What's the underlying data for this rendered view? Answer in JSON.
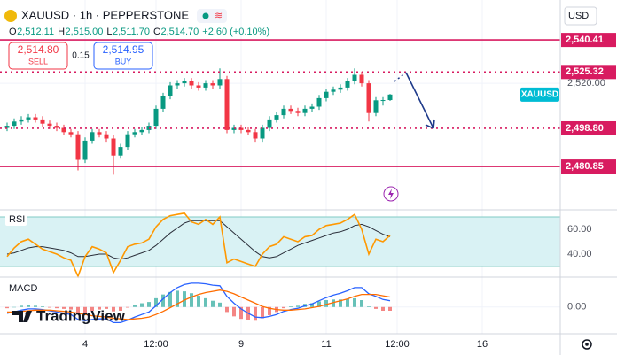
{
  "chart_data": {
    "type": "candlestick",
    "title": "XAUUSD · 1h · PEPPERSTONE",
    "currency": "USD",
    "ohlc_legend": [
      {
        "key": "O",
        "value": "2,512.11"
      },
      {
        "key": "H",
        "value": "2,515.00"
      },
      {
        "key": "L",
        "value": "2,511.70"
      },
      {
        "key": "C",
        "value": "2,514.70"
      }
    ],
    "change": "+2.60 (+0.10%)",
    "open": [
      2499,
      2500,
      2502,
      2503,
      2504,
      2503,
      2501,
      2500,
      2499,
      2497,
      2496,
      2484,
      2493,
      2497,
      2496,
      2494,
      2486,
      2490,
      2496,
      2497,
      2498,
      2500,
      2508,
      2514,
      2519,
      2520,
      2521,
      2519,
      2518,
      2520,
      2519,
      2522,
      2498,
      2499,
      2498,
      2497,
      2494,
      2499,
      2503,
      2505,
      2508,
      2507,
      2506,
      2508,
      2509,
      2513,
      2516,
      2517,
      2518,
      2521,
      2524,
      2520,
      2506,
      2512,
      2512.11
    ],
    "high": [
      2501.5,
      2503.5,
      2504.5,
      2505.5,
      2505.5,
      2504.5,
      2502.5,
      2501.5,
      2500.5,
      2498.5,
      2497.5,
      2494.5,
      2498.5,
      2498.5,
      2497.5,
      2495.5,
      2491.5,
      2497.5,
      2498.5,
      2499.5,
      2501.5,
      2509.5,
      2515.5,
      2520.5,
      2521.5,
      2522.5,
      2522.5,
      2520.5,
      2521.5,
      2521.5,
      2527,
      2523.5,
      2500.5,
      2500.5,
      2499.5,
      2498.5,
      2500.5,
      2504.5,
      2506.5,
      2509.5,
      2509.5,
      2508.5,
      2509.5,
      2510.5,
      2514.5,
      2517.5,
      2518.5,
      2519.5,
      2522.5,
      2527,
      2525.5,
      2521.5,
      2513.5,
      2513.5,
      2515.0
    ],
    "low": [
      2497.5,
      2498.5,
      2500.5,
      2501.5,
      2501.5,
      2499.5,
      2498.5,
      2497.5,
      2495.5,
      2494.5,
      2479,
      2482.5,
      2491.5,
      2494.5,
      2492.5,
      2477,
      2484.5,
      2488.5,
      2494.5,
      2495.5,
      2496.5,
      2498.5,
      2506.5,
      2512.5,
      2517.5,
      2518.5,
      2517.5,
      2516.5,
      2516.5,
      2517.5,
      2517.5,
      2496.5,
      2496.5,
      2496.5,
      2495.5,
      2492.5,
      2492.5,
      2497.5,
      2501.5,
      2503.5,
      2505.5,
      2504.5,
      2504.5,
      2506.5,
      2507.5,
      2511.5,
      2514.5,
      2515.5,
      2516.5,
      2519.5,
      2518.5,
      2502,
      2504.5,
      2509.5,
      2511.7
    ],
    "close": [
      2500,
      2502,
      2503,
      2504,
      2503,
      2501,
      2500,
      2499,
      2497,
      2496,
      2484,
      2493,
      2497,
      2496,
      2494,
      2486,
      2490,
      2496,
      2497,
      2498,
      2500,
      2508,
      2514,
      2519,
      2520,
      2521,
      2519,
      2518,
      2520,
      2519,
      2522,
      2498,
      2499,
      2498,
      2497,
      2494,
      2499,
      2503,
      2505,
      2508,
      2507,
      2506,
      2508,
      2509,
      2513,
      2516,
      2517,
      2518,
      2521,
      2524,
      2520,
      2506,
      2512,
      2512.11,
      2514.7
    ],
    "up_color": "#089981",
    "down_color": "#f23645",
    "grid": true,
    "xlim": [
      -1,
      78
    ],
    "xticks": [
      {
        "value": 11,
        "label": "4"
      },
      {
        "value": 21,
        "label": "12:00"
      },
      {
        "value": 33,
        "label": "9"
      },
      {
        "value": 45,
        "label": "11"
      },
      {
        "value": 55,
        "label": "12:00"
      },
      {
        "value": 67,
        "label": "16"
      }
    ],
    "ylim": [
      2461.3,
      2559.2
    ],
    "yticks": [
      {
        "value": 2520,
        "label": "2,520.00"
      }
    ],
    "levels": [
      {
        "value": 2540.41,
        "label": "2,540.41",
        "style": "solid"
      },
      {
        "value": 2525.32,
        "label": "2,525.32",
        "style": "dotted"
      },
      {
        "value": 2498.8,
        "label": "2,498.80",
        "style": "dotted"
      },
      {
        "value": 2480.85,
        "label": "2,480.85",
        "style": "solid"
      }
    ],
    "level_color": "#d81b60",
    "price_label": {
      "text": "XAUUSD",
      "color": "#00bcd4"
    },
    "rsi": {
      "name": "RSI",
      "ylim": [
        22.1,
        75
      ],
      "yticks": [
        {
          "value": 60,
          "label": "60.00"
        },
        {
          "value": 40,
          "label": "40.00"
        }
      ],
      "band": [
        30,
        70
      ],
      "band_color": "#d9f2f4",
      "color": "#ff9800",
      "values": [
        38,
        45,
        50,
        52,
        48,
        44,
        42,
        40,
        37,
        35,
        22,
        38,
        46,
        44,
        41,
        25,
        35,
        46,
        48,
        49,
        52,
        62,
        68,
        71,
        72,
        73,
        66,
        64,
        68,
        64,
        70,
        33,
        36,
        34,
        32,
        30,
        40,
        46,
        48,
        54,
        52,
        50,
        54,
        55,
        60,
        63,
        64,
        65,
        68,
        72,
        60,
        40,
        52,
        50,
        55
      ],
      "ma_color": "#2a2e39",
      "ma": [
        40,
        41,
        43,
        45,
        46,
        46,
        45,
        44,
        43,
        41,
        38,
        38,
        39,
        40,
        40,
        37,
        36,
        37,
        39,
        41,
        43,
        47,
        52,
        57,
        61,
        65,
        67,
        67,
        67,
        67,
        67,
        62,
        57,
        52,
        47,
        42,
        38,
        37,
        38,
        41,
        44,
        47,
        49,
        51,
        53,
        55,
        57,
        58,
        60,
        63,
        64,
        62,
        59,
        56,
        54
      ]
    },
    "macd": {
      "name": "MACD",
      "ylim": [
        -4,
        4.5
      ],
      "yticks": [
        {
          "value": 0,
          "label": "0.00"
        }
      ],
      "macd_color": "#2962ff",
      "macd": [
        -1,
        -0.8,
        -0.5,
        -0.3,
        -0.3,
        -0.4,
        -0.6,
        -0.8,
        -1,
        -1.2,
        -2,
        -2.2,
        -2,
        -1.9,
        -1.9,
        -2.5,
        -2.5,
        -2.1,
        -1.6,
        -1.2,
        -0.8,
        0.2,
        1.3,
        2.3,
        3.1,
        3.6,
        3.8,
        3.8,
        3.7,
        3.5,
        3.4,
        1.7,
        0.6,
        -0.3,
        -1.0,
        -1.6,
        -1.7,
        -1.5,
        -1.2,
        -0.7,
        -0.4,
        -0.2,
        0.2,
        0.5,
        1.0,
        1.5,
        1.9,
        2.2,
        2.6,
        3.1,
        3.1,
        2.1,
        1.7,
        1.2,
        1.0
      ],
      "signal_color": "#ff6d00",
      "signal": [
        -0.8,
        -0.8,
        -0.7,
        -0.6,
        -0.5,
        -0.5,
        -0.5,
        -0.6,
        -0.7,
        -0.8,
        -1.0,
        -1.2,
        -1.4,
        -1.5,
        -1.6,
        -1.8,
        -1.9,
        -2.0,
        -1.9,
        -1.8,
        -1.6,
        -1.2,
        -0.7,
        -0.1,
        0.5,
        1.1,
        1.6,
        2.0,
        2.3,
        2.5,
        2.7,
        2.5,
        2.1,
        1.6,
        1.1,
        0.6,
        0.1,
        -0.2,
        -0.4,
        -0.5,
        -0.5,
        -0.4,
        -0.3,
        -0.1,
        0.1,
        0.4,
        0.7,
        1.0,
        1.3,
        1.7,
        2.0,
        2.0,
        2.0,
        1.8,
        1.6
      ],
      "hist_up_color": "#26a69a",
      "hist_down_color": "#ef5350",
      "histogram": [
        -0.2,
        0,
        0.2,
        0.3,
        0.2,
        0.1,
        -0.1,
        -0.2,
        -0.3,
        -0.4,
        -1.0,
        -1.0,
        -0.6,
        -0.4,
        -0.3,
        -0.7,
        -0.6,
        -0.1,
        0.3,
        0.6,
        0.8,
        1.4,
        2.0,
        2.4,
        2.6,
        2.5,
        2.2,
        1.8,
        1.4,
        1.0,
        0.7,
        -0.8,
        -1.5,
        -1.9,
        -2.1,
        -2.2,
        -1.8,
        -1.3,
        -0.8,
        -0.2,
        0.1,
        0.2,
        0.5,
        0.6,
        0.9,
        1.1,
        1.2,
        1.2,
        1.3,
        1.4,
        1.1,
        0.1,
        -0.3,
        -0.6,
        -0.6
      ]
    }
  },
  "trade": {
    "sell_price": "2,514.80",
    "sell": "SELL",
    "spread": "0.15",
    "buy_price": "2,514.95",
    "buy": "BUY"
  },
  "logo": "TradingView"
}
